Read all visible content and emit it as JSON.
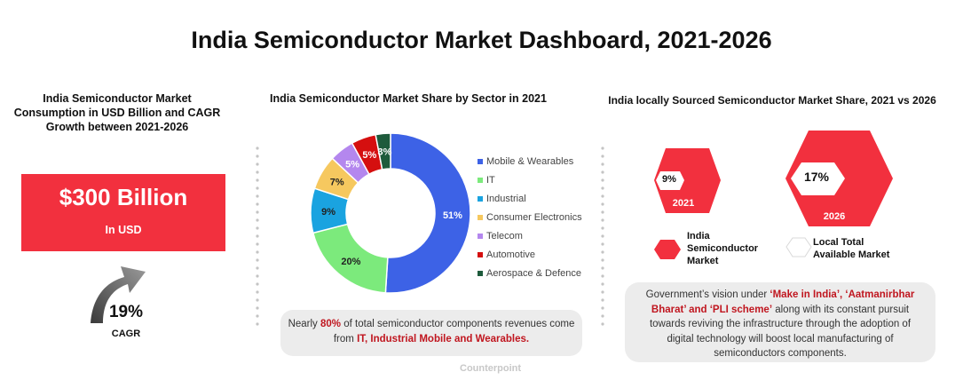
{
  "title": "India Semiconductor Market Dashboard, 2021-2026",
  "left_panel": {
    "title": "India Semiconductor Market Consumption in USD Billion and CAGR Growth between 2021-2026",
    "value": "$300 Billion",
    "value_unit": "In USD",
    "cagr_value": "19%",
    "cagr_label": "CAGR",
    "box_color": "#f2303e",
    "arrow_icon": "curved-up-arrow-icon"
  },
  "chart_data": [
    {
      "type": "pie",
      "donut": true,
      "title": "India Semiconductor Market Share by Sector in 2021",
      "legend_position": "right",
      "categories": [
        "Mobile & Wearables",
        "IT",
        "Industrial",
        "Consumer Electronics",
        "Telecom",
        "Automotive",
        "Aerospace & Defence"
      ],
      "values": [
        51,
        20,
        9,
        7,
        5,
        5,
        3
      ],
      "value_labels": [
        "51%",
        "20%",
        "9%",
        "7%",
        "5%",
        "5%",
        "3%"
      ],
      "colors": [
        "#3d62e6",
        "#7cea7c",
        "#1aa3e0",
        "#f6c85f",
        "#b487ee",
        "#d50f0f",
        "#1e5b3c"
      ]
    },
    {
      "type": "table",
      "title": "India locally Sourced Semiconductor Market Share, 2021 vs 2026",
      "categories": [
        "2021",
        "2026"
      ],
      "values": [
        9,
        17
      ],
      "value_labels": [
        "9%",
        "17%"
      ],
      "legend": [
        "India Semiconductor Market",
        "Local Total Available Market"
      ],
      "colors": [
        "#f2303e",
        "#ffffff"
      ]
    }
  ],
  "middle_note": {
    "prefix": "Nearly ",
    "highlight1": "80%",
    "middle": " of total semiconductor components revenues come from ",
    "highlight2": "IT, Industrial Mobile and Wearables."
  },
  "watermark": "Counterpoint",
  "right_note": {
    "p1": "Government’s vision under ",
    "h1": "‘Make in India’, ‘Aatmanirbhar Bharat’ and ‘PLI scheme’",
    "p2": " along with its constant pursuit towards reviving the infrastructure through the adoption of digital technology will boost local manufacturing of semiconductors components."
  }
}
